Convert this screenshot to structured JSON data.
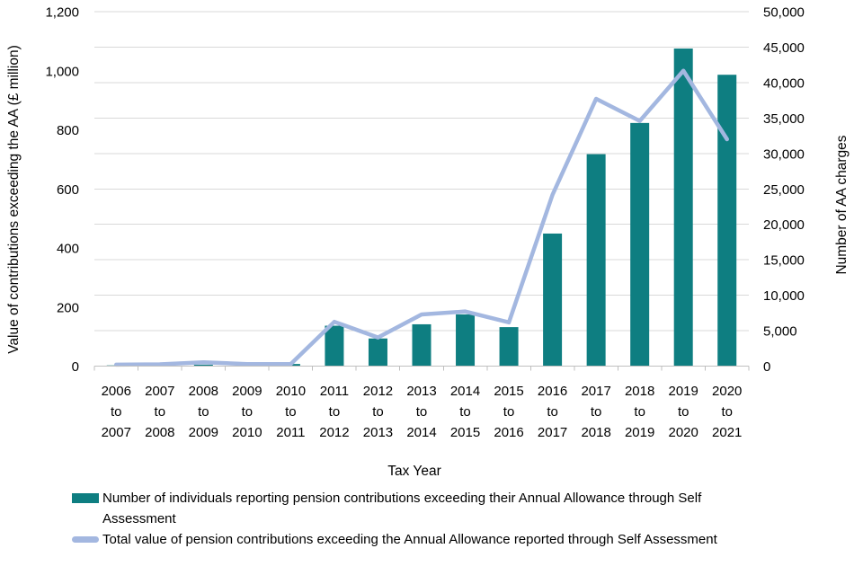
{
  "chart_data": {
    "type": "combo-bar-line",
    "x_axis": {
      "label": "Tax Year",
      "connector": "to",
      "categories": [
        {
          "start": "2006",
          "end": "2007"
        },
        {
          "start": "2007",
          "end": "2008"
        },
        {
          "start": "2008",
          "end": "2009"
        },
        {
          "start": "2009",
          "end": "2010"
        },
        {
          "start": "2010",
          "end": "2011"
        },
        {
          "start": "2011",
          "end": "2012"
        },
        {
          "start": "2012",
          "end": "2013"
        },
        {
          "start": "2013",
          "end": "2014"
        },
        {
          "start": "2014",
          "end": "2015"
        },
        {
          "start": "2015",
          "end": "2016"
        },
        {
          "start": "2016",
          "end": "2017"
        },
        {
          "start": "2017",
          "end": "2018"
        },
        {
          "start": "2018",
          "end": "2019"
        },
        {
          "start": "2019",
          "end": "2020"
        },
        {
          "start": "2020",
          "end": "2021"
        }
      ]
    },
    "left_axis": {
      "label": "Value of contributions exceeding the AA (£ million)",
      "min": 0,
      "max": 1200,
      "tick_step": 200
    },
    "right_axis": {
      "label": "Number of AA charges",
      "min": 0,
      "max": 50000,
      "tick_step": 5000
    },
    "series": [
      {
        "name": "Number of individuals reporting pension contributions exceeding their Annual Allowance through Self Assessment",
        "type": "bar",
        "axis": "right",
        "color": "#0E7E81",
        "values": [
          100,
          100,
          200,
          150,
          300,
          5700,
          3900,
          5900,
          7300,
          5500,
          18700,
          29900,
          34300,
          44800,
          41100
        ]
      },
      {
        "name": "Total value of pension contributions exceeding the Annual Allowance reported through Self Assessment",
        "type": "line",
        "axis": "left",
        "color": "#A3B7E0",
        "values": [
          5,
          6,
          13,
          7,
          7,
          150,
          97,
          175,
          185,
          148,
          580,
          905,
          830,
          1000,
          768
        ]
      }
    ],
    "style": {
      "gridline_color": "#D9D9D9",
      "axis_line_color": "#BFBFBF",
      "text_color": "#000000",
      "grid": "horizontal, every 5,000 of right axis",
      "legend_position": "bottom-left"
    }
  },
  "legend": {
    "items": [
      {
        "swatch": "bar-swatch",
        "label": "Number of individuals reporting pension contributions exceeding their Annual Allowance through Self Assessment"
      },
      {
        "swatch": "line-swatch",
        "label": "Total value of pension contributions exceeding the Annual Allowance reported through Self Assessment"
      }
    ]
  }
}
